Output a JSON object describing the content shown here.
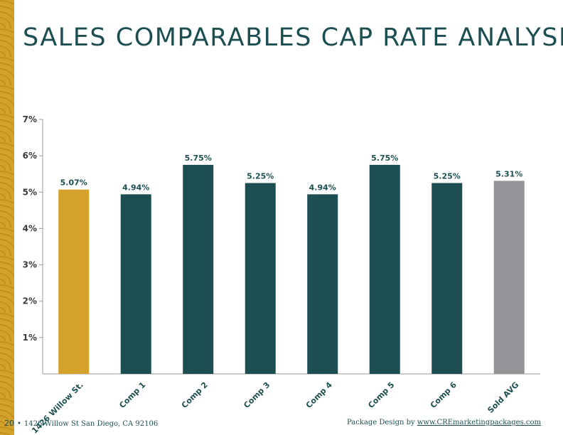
{
  "page": {
    "title": "SALES COMPARABLES CAP RATE ANALYSIS",
    "page_number": "20",
    "address": "1426 Willow St San Diego, CA 92106",
    "credit_prefix": "Package Design by ",
    "credit_link": "www.CREmarketingpackages.com"
  },
  "colors": {
    "subject": "#d4a12b",
    "comp": "#1d4f52",
    "average": "#939598",
    "title": "#1d4f52"
  },
  "chart_data": {
    "type": "bar",
    "title": "",
    "xlabel": "",
    "ylabel": "",
    "ylim": [
      0,
      7
    ],
    "yticks": [
      "1%",
      "2%",
      "3%",
      "4%",
      "5%",
      "6%",
      "7%"
    ],
    "categories": [
      "1426 Willow St.",
      "Comp 1",
      "Comp 2",
      "Comp 3",
      "Comp 4",
      "Comp 5",
      "Comp 6",
      "Sold AVG"
    ],
    "values": [
      5.07,
      4.94,
      5.75,
      5.25,
      4.94,
      5.75,
      5.25,
      5.31
    ],
    "value_labels": [
      "5.07%",
      "4.94%",
      "5.75%",
      "5.25%",
      "4.94%",
      "5.75%",
      "5.25%",
      "5.31%"
    ],
    "bar_roles": [
      "subject",
      "comp",
      "comp",
      "comp",
      "comp",
      "comp",
      "comp",
      "average"
    ],
    "grid": false,
    "legend": "none"
  }
}
